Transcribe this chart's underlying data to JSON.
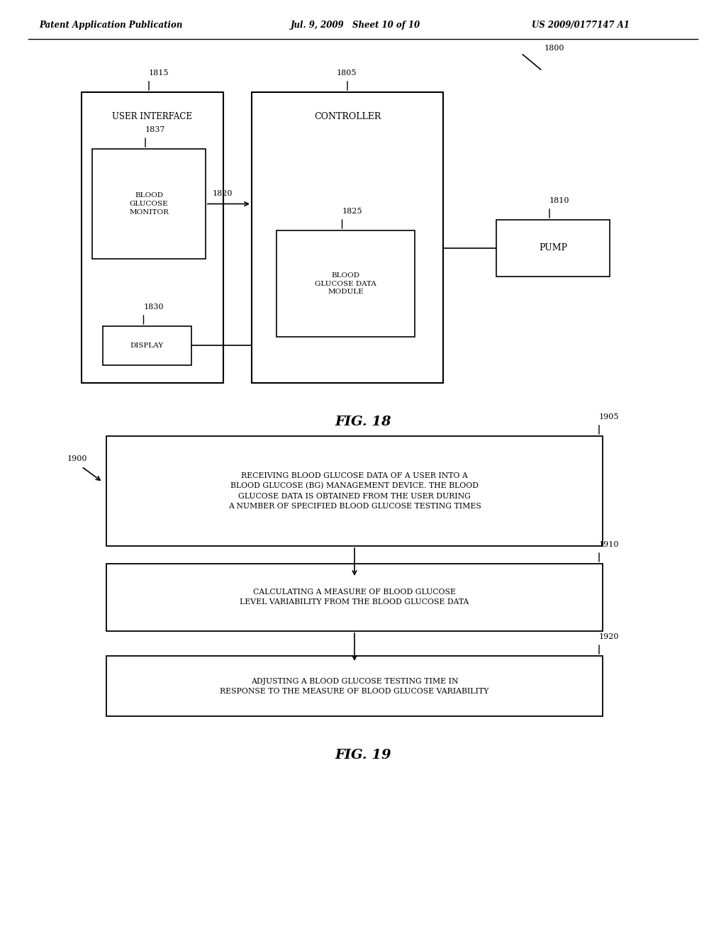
{
  "bg_color": "#ffffff",
  "header_left": "Patent Application Publication",
  "header_mid": "Jul. 9, 2009   Sheet 10 of 10",
  "header_right": "US 2009/0177147 A1",
  "fig18_label": "FIG. 18",
  "fig19_label": "FIG. 19",
  "ref_1800": "1800",
  "ref_1805": "1805",
  "ref_1810": "1810",
  "ref_1815": "1815",
  "ref_1820": "1820",
  "ref_1825": "1825",
  "ref_1830": "1830",
  "ref_1837": "1837",
  "ref_1900": "1900",
  "ref_1905": "1905",
  "ref_1910": "1910",
  "ref_1920": "1920",
  "box_controller_label": "CONTROLLER",
  "box_bgm_label": "BLOOD\nGLUCOSE\nMONITOR",
  "box_pump_label": "PUMP",
  "box_ui_label": "USER INTERFACE",
  "box_display_label": "DISPLAY",
  "box_bgdm_label": "BLOOD\nGLUCOSE DATA\nMODULE",
  "box1905_label": "RECEIVING BLOOD GLUCOSE DATA OF A USER INTO A\nBLOOD GLUCOSE (BG) MANAGEMENT DEVICE. THE BLOOD\nGLUCOSE DATA IS OBTAINED FROM THE USER DURING\nA NUMBER OF SPECIFIED BLOOD GLUCOSE TESTING TIMES",
  "box1910_label": "CALCULATING A MEASURE OF BLOOD GLUCOSE\nLEVEL VARIABILITY FROM THE BLOOD GLUCOSE DATA",
  "box1920_label": "ADJUSTING A BLOOD GLUCOSE TESTING TIME IN\nRESPONSE TO THE MEASURE OF BLOOD GLUCOSE VARIABILITY"
}
